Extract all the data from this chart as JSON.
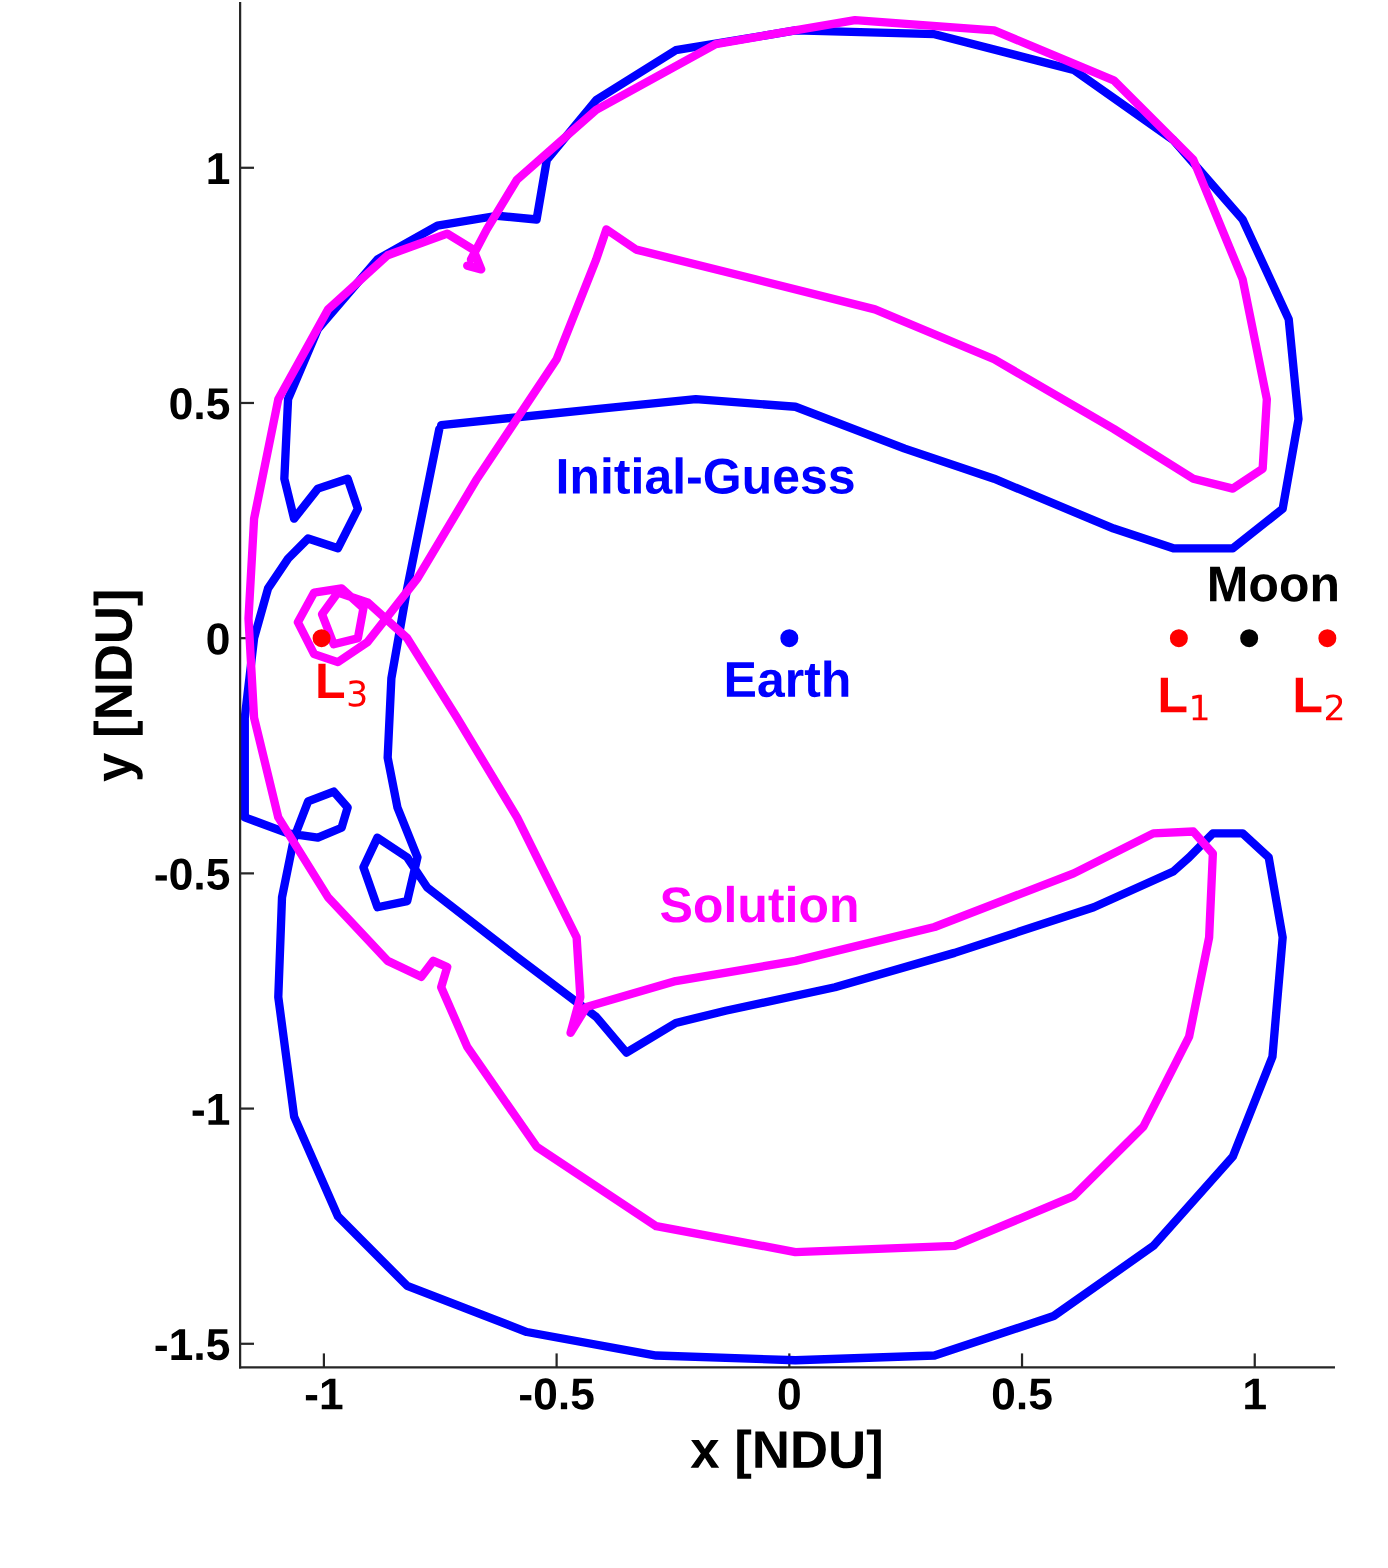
{
  "chart_data": {
    "type": "line",
    "xlabel": "x [NDU]",
    "ylabel": "y [NDU]",
    "xlim": [
      -1.18,
      1.17
    ],
    "ylim": [
      -1.55,
      1.35
    ],
    "xticks": [
      -1,
      -0.5,
      0,
      0.5,
      1
    ],
    "yticks": [
      -1.5,
      -1,
      -0.5,
      0,
      0.5,
      1
    ],
    "grid": false,
    "legend": false,
    "marker": "none",
    "line_style": "solid",
    "series": [
      {
        "name": "Initial-Guess",
        "color": "#0000ff",
        "x": [
          -0.748,
          -0.415,
          -0.201,
          0.013,
          0.248,
          0.44,
          0.697,
          0.825,
          0.953,
          1.06,
          1.094,
          1.073,
          0.974,
          0.825,
          0.611,
          0.312,
          0.013,
          -0.244,
          -0.415,
          -0.521,
          -0.543,
          -0.628,
          -0.756,
          -0.885,
          -1.013,
          -1.077,
          -1.085,
          -1.064,
          -1.013,
          -0.949,
          -0.927,
          -0.97,
          -1.034,
          -1.077,
          -1.12,
          -1.15,
          -1.17,
          -1.17,
          -1.077,
          -1.013,
          -0.962,
          -0.949,
          -0.979,
          -1.034,
          -1.064,
          -1.09,
          -1.098,
          -1.064,
          -0.97,
          -0.821,
          -0.564,
          -0.286,
          0.013,
          0.312,
          0.568,
          0.782,
          0.953,
          1.038,
          1.06,
          1.03,
          0.974,
          0.91,
          0.859,
          0.825,
          0.654,
          0.355,
          0.098,
          -0.137,
          -0.244,
          -0.35,
          -0.415,
          -0.585,
          -0.778,
          -0.821,
          -0.885,
          -0.915,
          -0.885,
          -0.821,
          -0.799,
          -0.842,
          -0.863,
          -0.855,
          -0.821,
          -0.752
        ],
        "values": [
          0.453,
          0.487,
          0.508,
          0.492,
          0.403,
          0.339,
          0.233,
          0.191,
          0.191,
          0.275,
          0.466,
          0.678,
          0.89,
          1.059,
          1.208,
          1.284,
          1.292,
          1.25,
          1.144,
          1.017,
          0.89,
          0.898,
          0.877,
          0.805,
          0.657,
          0.508,
          0.339,
          0.254,
          0.318,
          0.339,
          0.275,
          0.191,
          0.212,
          0.169,
          0.106,
          0.0,
          -0.169,
          -0.381,
          -0.415,
          -0.424,
          -0.403,
          -0.36,
          -0.326,
          -0.347,
          -0.424,
          -0.551,
          -0.763,
          -1.017,
          -1.229,
          -1.377,
          -1.475,
          -1.525,
          -1.535,
          -1.525,
          -1.441,
          -1.292,
          -1.102,
          -0.89,
          -0.636,
          -0.466,
          -0.415,
          -0.415,
          -0.466,
          -0.496,
          -0.572,
          -0.669,
          -0.742,
          -0.792,
          -0.818,
          -0.881,
          -0.805,
          -0.678,
          -0.53,
          -0.466,
          -0.424,
          -0.487,
          -0.572,
          -0.559,
          -0.466,
          -0.36,
          -0.254,
          -0.085,
          0.106,
          0.445
        ]
      },
      {
        "name": "Solution",
        "color": "#ff00ff",
        "x": [
          -0.684,
          -0.65,
          -0.585,
          -0.415,
          -0.158,
          0.141,
          0.44,
          0.697,
          0.868,
          0.974,
          1.026,
          1.017,
          0.953,
          0.868,
          0.697,
          0.44,
          0.184,
          -0.073,
          -0.329,
          -0.393,
          -0.415,
          -0.5,
          -0.671,
          -0.799,
          -0.906,
          -0.97,
          -1.021,
          -1.056,
          -1.021,
          -0.962,
          -0.915,
          -0.927,
          -0.979,
          -1.004,
          -0.97,
          -0.906,
          -0.821,
          -0.714,
          -0.585,
          -0.457,
          -0.449,
          -0.47,
          -0.436,
          -0.244,
          0.013,
          0.312,
          0.611,
          0.782,
          0.868,
          0.91,
          0.902,
          0.859,
          0.761,
          0.611,
          0.355,
          0.013,
          -0.286,
          -0.543,
          -0.692,
          -0.748,
          -0.735,
          -0.765,
          -0.791,
          -0.863,
          -0.991,
          -1.098,
          -1.15,
          -1.162,
          -1.15,
          -1.098,
          -0.991,
          -0.863,
          -0.735,
          -0.679,
          -0.662,
          -0.692
        ],
        "values": [
          0.805,
          0.869,
          0.975,
          1.123,
          1.263,
          1.314,
          1.292,
          1.186,
          1.017,
          0.763,
          0.508,
          0.36,
          0.318,
          0.339,
          0.445,
          0.593,
          0.699,
          0.763,
          0.826,
          0.869,
          0.805,
          0.593,
          0.339,
          0.127,
          -0.008,
          -0.051,
          -0.034,
          0.034,
          0.097,
          0.106,
          0.064,
          0.0,
          -0.013,
          0.051,
          0.097,
          0.076,
          0.0,
          -0.169,
          -0.381,
          -0.636,
          -0.763,
          -0.839,
          -0.784,
          -0.729,
          -0.686,
          -0.614,
          -0.5,
          -0.415,
          -0.411,
          -0.458,
          -0.636,
          -0.847,
          -1.038,
          -1.186,
          -1.292,
          -1.305,
          -1.25,
          -1.081,
          -0.869,
          -0.742,
          -0.699,
          -0.686,
          -0.72,
          -0.686,
          -0.551,
          -0.381,
          -0.169,
          0.042,
          0.254,
          0.508,
          0.699,
          0.814,
          0.86,
          0.826,
          0.784,
          0.792
        ]
      },
      {
        "name": "Earth",
        "color": "#0000ff",
        "type": "scatter",
        "marker": "circle",
        "x": [
          0.0
        ],
        "values": [
          0.0
        ]
      },
      {
        "name": "Moon",
        "color": "#000000",
        "type": "scatter",
        "marker": "circle",
        "x": [
          0.988
        ],
        "values": [
          0.0
        ]
      },
      {
        "name": "L$_{1}$",
        "color": "#ff0000",
        "type": "scatter",
        "marker": "circle",
        "x": [
          0.837
        ],
        "values": [
          0.0
        ]
      },
      {
        "name": "L$_{2}$",
        "color": "#ff0000",
        "type": "scatter",
        "marker": "circle",
        "x": [
          1.156
        ],
        "values": [
          0.0
        ]
      },
      {
        "name": "L$_{3}$",
        "color": "#ff0000",
        "type": "scatter",
        "marker": "circle",
        "x": [
          -1.005
        ],
        "values": [
          0.0
        ]
      }
    ]
  }
}
